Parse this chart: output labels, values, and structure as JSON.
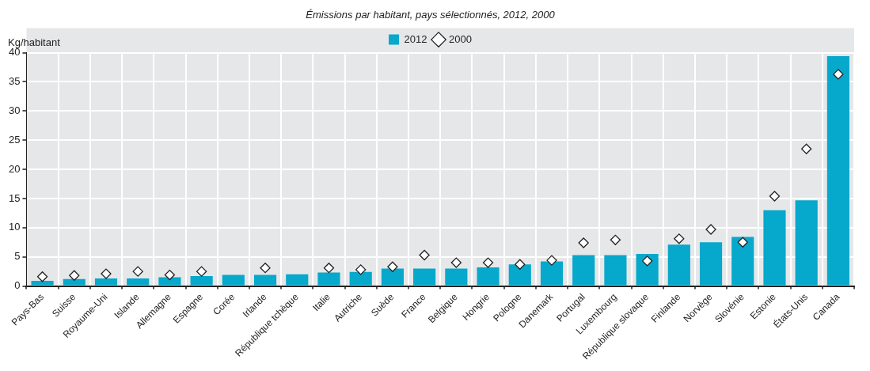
{
  "chart_data": {
    "type": "bar",
    "title": "Émissions par habitant, pays sélectionnés, 2012, 2000",
    "ylabel": "Kg/habitant",
    "categories": [
      "Pays-Bas",
      "Suisse",
      "Royaume-Uni",
      "Islande",
      "Allemagne",
      "Espagne",
      "Corée",
      "Irlande",
      "République tchèque",
      "Italie",
      "Autriche",
      "Suède",
      "France",
      "Belgique",
      "Hongrie",
      "Pologne",
      "Danemark",
      "Portugal",
      "Luxembourg",
      "République slovaque",
      "Finlande",
      "Norvège",
      "Slovénie",
      "Estonie",
      "États-Unis",
      "Canada"
    ],
    "series": [
      {
        "name": "2012",
        "color": "#06a8cb",
        "values": [
          0.9,
          1.2,
          1.3,
          1.3,
          1.5,
          1.7,
          1.9,
          1.9,
          2.0,
          2.3,
          2.4,
          3.0,
          3.0,
          3.0,
          3.2,
          3.7,
          4.2,
          5.3,
          5.3,
          5.5,
          7.1,
          7.5,
          8.4,
          13.0,
          14.7,
          39.4
        ]
      },
      {
        "name": "2000",
        "type": "scatter",
        "marker": "diamond",
        "color": "#ffffff",
        "values": [
          1.6,
          1.8,
          2.1,
          2.5,
          1.9,
          2.5,
          null,
          3.1,
          null,
          3.1,
          2.8,
          3.3,
          5.3,
          4.0,
          4.0,
          3.7,
          4.4,
          7.4,
          7.9,
          4.3,
          8.1,
          9.7,
          7.5,
          15.4,
          23.5,
          36.3
        ]
      }
    ],
    "ylim": [
      0,
      40
    ],
    "yticks": [
      0,
      5,
      10,
      15,
      20,
      25,
      30,
      35,
      40
    ],
    "grid": true,
    "legend": "top"
  }
}
